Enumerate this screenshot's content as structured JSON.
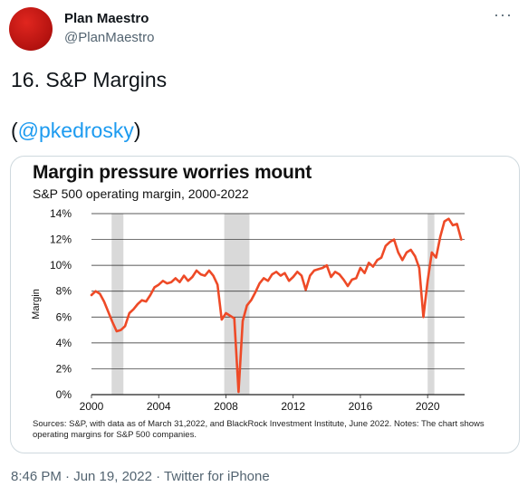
{
  "tweet": {
    "display_name": "Plan Maestro",
    "handle": "@PlanMaestro",
    "text": "16. S&P Margins",
    "mention_open": "(",
    "mention": "@pkedrosky",
    "mention_close": ")",
    "more_label": "···",
    "timestamp": "8:46 PM · Jun 19, 2022 · Twitter for iPhone"
  },
  "colors": {
    "line": "#ee4a27",
    "recession": "#d9d9d9",
    "grid": "#222222"
  },
  "chart_data": {
    "type": "line",
    "title": "Margin pressure worries mount",
    "subtitle": "S&P 500 operating margin, 2000-2022",
    "xlabel": "",
    "ylabel": "Margin",
    "xlim": [
      2000,
      2022.2
    ],
    "ylim": [
      0,
      14
    ],
    "xticks": [
      2000,
      2004,
      2008,
      2012,
      2016,
      2020
    ],
    "yticks": [
      "0%",
      "2%",
      "4%",
      "6%",
      "8%",
      "10%",
      "12%",
      "14%"
    ],
    "grid": true,
    "recession_bands": [
      [
        2001.2,
        2001.9
      ],
      [
        2007.9,
        2009.4
      ],
      [
        2020.0,
        2020.4
      ]
    ],
    "series": [
      {
        "x": [
          2000,
          2000.25,
          2000.5,
          2000.75,
          2001,
          2001.25,
          2001.5,
          2001.75,
          2002,
          2002.25,
          2002.5,
          2002.75,
          2003,
          2003.25,
          2003.5,
          2003.75,
          2004,
          2004.25,
          2004.5,
          2004.75,
          2005,
          2005.25,
          2005.5,
          2005.75,
          2006,
          2006.25,
          2006.5,
          2006.75,
          2007,
          2007.25,
          2007.5,
          2007.75,
          2008,
          2008.25,
          2008.5,
          2008.75,
          2009,
          2009.25,
          2009.5,
          2009.75,
          2010,
          2010.25,
          2010.5,
          2010.75,
          2011,
          2011.25,
          2011.5,
          2011.75,
          2012,
          2012.25,
          2012.5,
          2012.75,
          2013,
          2013.25,
          2013.5,
          2013.75,
          2014,
          2014.25,
          2014.5,
          2014.75,
          2015,
          2015.25,
          2015.5,
          2015.75,
          2016,
          2016.25,
          2016.5,
          2016.75,
          2017,
          2017.25,
          2017.5,
          2017.75,
          2018,
          2018.25,
          2018.5,
          2018.75,
          2019,
          2019.25,
          2019.5,
          2019.75,
          2020,
          2020.25,
          2020.5,
          2020.75,
          2021,
          2021.25,
          2021.5,
          2021.75,
          2022
        ],
        "y": [
          7.7,
          8.0,
          7.8,
          7.2,
          6.4,
          5.6,
          4.9,
          5.0,
          5.3,
          6.3,
          6.6,
          7.0,
          7.3,
          7.2,
          7.7,
          8.3,
          8.5,
          8.8,
          8.6,
          8.7,
          9.0,
          8.7,
          9.2,
          8.8,
          9.1,
          9.6,
          9.3,
          9.2,
          9.6,
          9.2,
          8.5,
          5.8,
          6.3,
          6.1,
          5.9,
          0.2,
          5.7,
          6.9,
          7.3,
          7.9,
          8.6,
          9.0,
          8.8,
          9.3,
          9.5,
          9.2,
          9.4,
          8.8,
          9.1,
          9.5,
          9.2,
          8.1,
          9.2,
          9.6,
          9.7,
          9.8,
          10.0,
          9.1,
          9.5,
          9.3,
          8.9,
          8.4,
          8.9,
          9.0,
          9.8,
          9.4,
          10.2,
          9.9,
          10.4,
          10.6,
          11.5,
          11.8,
          12.0,
          11.0,
          10.4,
          11.0,
          11.2,
          10.7,
          9.8,
          6.0,
          8.8,
          11.0,
          10.6,
          12.2,
          13.4,
          13.6,
          13.1,
          13.2,
          12.0
        ]
      }
    ]
  },
  "source_note": "Sources: S&P, with data as of March 31,2022, and BlackRock Investment Institute, June 2022. Notes: The chart shows operating margins for S&P 500 companies."
}
